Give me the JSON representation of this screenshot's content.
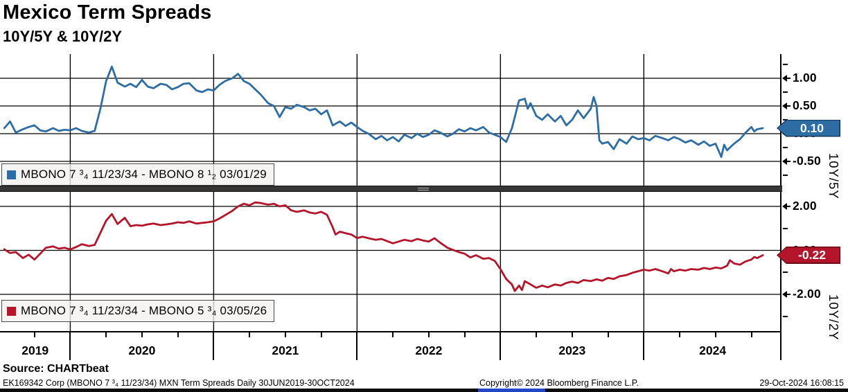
{
  "header": {
    "title": "Mexico Term Spreads",
    "subtitle": "10Y/5Y & 10Y/2Y"
  },
  "footer": {
    "source": "Source: CHARTbeat",
    "info_left": "EK169342 Corp (MBONO 7 ³₄ 11/23/34) MXN Term Spreads  Daily 30JUN2019-30OCT2024",
    "copyright": "Copyright© 2024 Bloomberg Finance L.P.",
    "timestamp": "29-Oct-2024 16:08:15"
  },
  "chart_data": {
    "type": "line",
    "title": "Mexico Term Spreads",
    "subtitle": "10Y/5Y & 10Y/2Y",
    "x_unit": "decimal_year",
    "xlim": [
      2019.51,
      2024.96
    ],
    "xticks": [
      "2019",
      "2020",
      "2021",
      "2022",
      "2023",
      "2024"
    ],
    "grid": true,
    "legend_position": "inside-left-bottom",
    "panels": [
      {
        "name": "MBONO 7 ³₄ 11/23/34 - MBONO 8 ¹₂ 03/01/29",
        "ylabel": "10Y/5Y",
        "color": "#2d6da3",
        "tag_border": "#16365c",
        "ylim": [
          -0.94,
          1.44
        ],
        "yticks": [
          1.0,
          0.5,
          0.0,
          -0.5
        ],
        "ytick_labels": [
          "1.00",
          "0.50",
          "0.00",
          "-0.50"
        ],
        "yticks_minor": [
          1.25,
          0.75,
          0.25,
          -0.25,
          -0.75
        ],
        "last_label": "0.10",
        "last_value": 0.1,
        "x": [
          2019.54,
          2019.58,
          2019.62,
          2019.67,
          2019.71,
          2019.75,
          2019.79,
          2019.83,
          2019.88,
          2019.92,
          2019.96,
          2020.0,
          2020.04,
          2020.08,
          2020.13,
          2020.17,
          2020.21,
          2020.25,
          2020.29,
          2020.33,
          2020.38,
          2020.42,
          2020.46,
          2020.5,
          2020.54,
          2020.58,
          2020.63,
          2020.67,
          2020.71,
          2020.75,
          2020.79,
          2020.83,
          2020.88,
          2020.92,
          2020.96,
          2021.0,
          2021.04,
          2021.08,
          2021.13,
          2021.17,
          2021.21,
          2021.25,
          2021.29,
          2021.33,
          2021.38,
          2021.42,
          2021.46,
          2021.5,
          2021.54,
          2021.58,
          2021.63,
          2021.67,
          2021.71,
          2021.75,
          2021.79,
          2021.83,
          2021.88,
          2021.92,
          2021.96,
          2022.0,
          2022.04,
          2022.08,
          2022.13,
          2022.17,
          2022.21,
          2022.25,
          2022.29,
          2022.33,
          2022.38,
          2022.42,
          2022.46,
          2022.5,
          2022.54,
          2022.58,
          2022.63,
          2022.67,
          2022.71,
          2022.75,
          2022.79,
          2022.83,
          2022.88,
          2022.92,
          2022.96,
          2023.0,
          2023.04,
          2023.08,
          2023.13,
          2023.17,
          2023.19,
          2023.21,
          2023.25,
          2023.29,
          2023.33,
          2023.38,
          2023.42,
          2023.46,
          2023.5,
          2023.54,
          2023.58,
          2023.63,
          2023.65,
          2023.67,
          2023.69,
          2023.71,
          2023.75,
          2023.79,
          2023.83,
          2023.88,
          2023.92,
          2023.96,
          2024.0,
          2024.04,
          2024.08,
          2024.13,
          2024.17,
          2024.21,
          2024.25,
          2024.29,
          2024.33,
          2024.38,
          2024.42,
          2024.46,
          2024.5,
          2024.54,
          2024.56,
          2024.58,
          2024.63,
          2024.67,
          2024.71,
          2024.75,
          2024.77,
          2024.79,
          2024.83
        ],
        "y": [
          0.1,
          0.22,
          0.02,
          0.08,
          0.12,
          0.15,
          0.06,
          0.04,
          0.1,
          0.05,
          0.07,
          0.06,
          0.1,
          0.05,
          0.02,
          0.05,
          0.45,
          0.95,
          1.21,
          0.92,
          0.85,
          0.9,
          0.84,
          0.97,
          0.85,
          0.82,
          0.9,
          0.88,
          0.8,
          0.84,
          0.9,
          0.91,
          0.78,
          0.75,
          0.8,
          0.78,
          0.88,
          0.95,
          1.0,
          1.08,
          0.95,
          0.9,
          0.8,
          0.7,
          0.55,
          0.5,
          0.3,
          0.48,
          0.45,
          0.52,
          0.48,
          0.42,
          0.45,
          0.35,
          0.42,
          0.15,
          0.22,
          0.14,
          0.2,
          0.12,
          0.05,
          0.0,
          -0.1,
          -0.04,
          -0.12,
          -0.06,
          -0.14,
          -0.02,
          -0.08,
          0.0,
          -0.06,
          -0.02,
          0.06,
          0.02,
          -0.05,
          0.0,
          0.08,
          0.04,
          0.1,
          0.06,
          0.12,
          0.02,
          -0.02,
          -0.06,
          -0.15,
          0.1,
          0.6,
          0.63,
          0.45,
          0.55,
          0.32,
          0.25,
          0.35,
          0.22,
          0.32,
          0.15,
          0.25,
          0.42,
          0.28,
          0.45,
          0.66,
          0.5,
          -0.12,
          -0.18,
          -0.15,
          -0.28,
          -0.1,
          -0.18,
          -0.05,
          -0.1,
          -0.08,
          -0.12,
          -0.04,
          -0.08,
          -0.12,
          -0.06,
          -0.1,
          -0.16,
          -0.12,
          -0.2,
          -0.14,
          -0.22,
          -0.18,
          -0.42,
          -0.2,
          -0.3,
          -0.18,
          -0.1,
          0.02,
          0.12,
          0.04,
          0.08,
          0.1
        ]
      },
      {
        "name": "MBONO 7 ³₄ 11/23/34 - MBONO 5 ³₄ 03/05/26",
        "ylabel": "10Y/2Y",
        "color": "#b5152b",
        "tag_border": "#6e0b18",
        "ylim": [
          -3.7,
          2.68
        ],
        "yticks": [
          2.0,
          0.0,
          -2.0
        ],
        "ytick_labels": [
          "2.00",
          "0.00",
          "-2.00"
        ],
        "yticks_minor": [
          1.0,
          -1.0,
          -3.0
        ],
        "last_label": "-0.22",
        "last_value": -0.22,
        "x": [
          2019.54,
          2019.58,
          2019.62,
          2019.67,
          2019.71,
          2019.75,
          2019.79,
          2019.83,
          2019.88,
          2019.92,
          2019.96,
          2020.0,
          2020.04,
          2020.08,
          2020.13,
          2020.17,
          2020.21,
          2020.25,
          2020.29,
          2020.33,
          2020.38,
          2020.42,
          2020.46,
          2020.5,
          2020.54,
          2020.58,
          2020.63,
          2020.67,
          2020.71,
          2020.75,
          2020.79,
          2020.83,
          2020.88,
          2020.92,
          2020.96,
          2021.0,
          2021.04,
          2021.08,
          2021.13,
          2021.17,
          2021.21,
          2021.25,
          2021.29,
          2021.33,
          2021.38,
          2021.42,
          2021.46,
          2021.5,
          2021.54,
          2021.58,
          2021.63,
          2021.67,
          2021.71,
          2021.75,
          2021.79,
          2021.83,
          2021.85,
          2021.88,
          2021.92,
          2021.96,
          2022.0,
          2022.04,
          2022.08,
          2022.13,
          2022.17,
          2022.21,
          2022.25,
          2022.29,
          2022.33,
          2022.38,
          2022.42,
          2022.46,
          2022.5,
          2022.54,
          2022.58,
          2022.63,
          2022.67,
          2022.71,
          2022.75,
          2022.79,
          2022.83,
          2022.88,
          2022.92,
          2022.96,
          2023.0,
          2023.04,
          2023.08,
          2023.1,
          2023.13,
          2023.15,
          2023.17,
          2023.21,
          2023.25,
          2023.29,
          2023.33,
          2023.38,
          2023.42,
          2023.46,
          2023.5,
          2023.54,
          2023.58,
          2023.63,
          2023.67,
          2023.71,
          2023.75,
          2023.79,
          2023.83,
          2023.88,
          2023.92,
          2023.96,
          2024.0,
          2024.04,
          2024.08,
          2024.13,
          2024.17,
          2024.19,
          2024.21,
          2024.25,
          2024.29,
          2024.33,
          2024.38,
          2024.42,
          2024.46,
          2024.5,
          2024.54,
          2024.58,
          2024.6,
          2024.63,
          2024.67,
          2024.71,
          2024.75,
          2024.77,
          2024.79,
          2024.83
        ],
        "y": [
          0.05,
          -0.12,
          -0.08,
          -0.35,
          -0.2,
          -0.42,
          -0.15,
          0.12,
          0.18,
          0.08,
          0.12,
          0.04,
          0.15,
          0.28,
          0.2,
          0.25,
          0.8,
          1.35,
          1.65,
          1.2,
          1.48,
          1.1,
          1.15,
          1.12,
          1.18,
          1.22,
          1.15,
          1.18,
          1.22,
          1.28,
          1.25,
          1.32,
          1.22,
          1.25,
          1.28,
          1.32,
          1.45,
          1.6,
          1.8,
          2.0,
          2.12,
          2.05,
          2.18,
          2.15,
          2.08,
          2.12,
          2.0,
          2.05,
          1.82,
          1.75,
          1.82,
          1.72,
          1.68,
          1.75,
          1.62,
          1.05,
          0.72,
          0.85,
          0.78,
          0.72,
          0.56,
          0.62,
          0.55,
          0.48,
          0.52,
          0.42,
          0.32,
          0.4,
          0.48,
          0.42,
          0.52,
          0.45,
          0.4,
          0.55,
          0.35,
          0.12,
          0.02,
          -0.08,
          -0.15,
          -0.32,
          -0.22,
          -0.38,
          -0.35,
          -0.48,
          -0.85,
          -1.3,
          -1.55,
          -1.85,
          -1.6,
          -1.8,
          -1.4,
          -1.55,
          -1.7,
          -1.6,
          -1.68,
          -1.55,
          -1.6,
          -1.48,
          -1.42,
          -1.48,
          -1.35,
          -1.4,
          -1.32,
          -1.38,
          -1.25,
          -1.3,
          -1.18,
          -1.12,
          -1.02,
          -0.95,
          -0.88,
          -0.92,
          -0.85,
          -0.95,
          -1.05,
          -0.85,
          -0.95,
          -0.88,
          -0.92,
          -0.85,
          -0.88,
          -0.8,
          -0.85,
          -0.78,
          -0.82,
          -0.7,
          -0.45,
          -0.6,
          -0.65,
          -0.5,
          -0.42,
          -0.3,
          -0.35,
          -0.22
        ]
      }
    ]
  }
}
